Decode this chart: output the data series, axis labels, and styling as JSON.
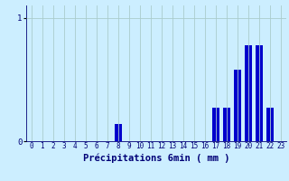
{
  "categories": [
    0,
    1,
    2,
    3,
    4,
    5,
    6,
    7,
    8,
    9,
    10,
    11,
    12,
    13,
    14,
    15,
    16,
    17,
    18,
    19,
    20,
    21,
    22,
    23
  ],
  "values": [
    0,
    0,
    0,
    0,
    0,
    0,
    0,
    0,
    0.14,
    0,
    0,
    0,
    0,
    0,
    0,
    0,
    0,
    0.27,
    0.27,
    0.58,
    0.78,
    0.78,
    0.27,
    0
  ],
  "bar_color": "#0000cc",
  "bg_color": "#cceeff",
  "grid_color": "#aacccc",
  "axis_color": "#000077",
  "xlabel": "Précipitations 6min ( mm )",
  "xlabel_fontsize": 7.5,
  "tick_fontsize": 5.5,
  "ylim": [
    0,
    1.1
  ],
  "yticks": [
    0,
    1
  ],
  "xlim": [
    -0.5,
    23.5
  ]
}
